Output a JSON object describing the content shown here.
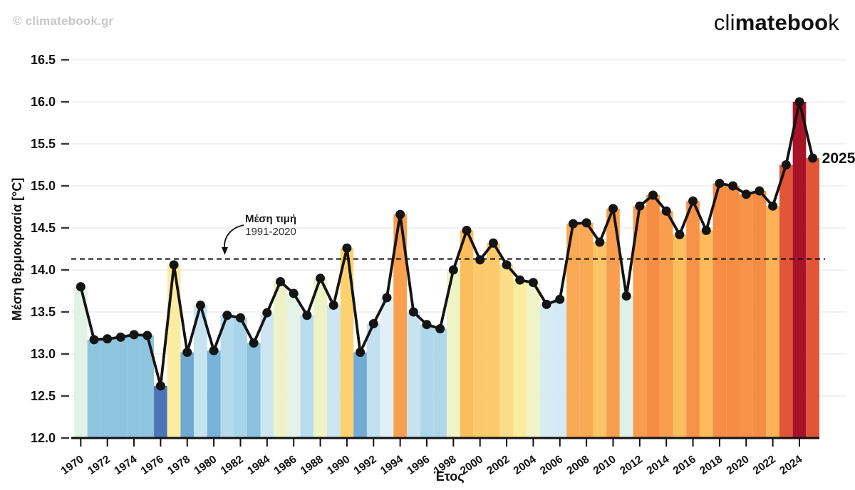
{
  "header": {
    "copyright": "© climatebook.gr",
    "logo": {
      "part1": "cli",
      "part2": "mateboo",
      "part3": "k"
    }
  },
  "chart_data": {
    "type": "bar+line",
    "xlabel": "Έτος",
    "ylabel": "Μέση θερμοκρασία [°C]",
    "ylim": [
      12.0,
      16.5
    ],
    "yticks": [
      12.0,
      12.5,
      13.0,
      13.5,
      14.0,
      14.5,
      15.0,
      15.5,
      16.0,
      16.5
    ],
    "xticks": [
      1970,
      1972,
      1974,
      1976,
      1978,
      1980,
      1982,
      1984,
      1986,
      1988,
      1990,
      1992,
      1994,
      1996,
      1998,
      2000,
      2002,
      2004,
      2006,
      2008,
      2010,
      2012,
      2014,
      2016,
      2018,
      2020,
      2022,
      2024
    ],
    "grid": true,
    "legend_position": "none",
    "baseline": {
      "value": 14.13,
      "label_line1": "Μέση τιμή",
      "label_line2": "1991-2020"
    },
    "end_label": "2025",
    "line_color": "#141414",
    "years": [
      1970,
      1971,
      1972,
      1973,
      1974,
      1975,
      1976,
      1977,
      1978,
      1979,
      1980,
      1981,
      1982,
      1983,
      1984,
      1985,
      1986,
      1987,
      1988,
      1989,
      1990,
      1991,
      1992,
      1993,
      1994,
      1995,
      1996,
      1997,
      1998,
      1999,
      2000,
      2001,
      2002,
      2003,
      2004,
      2005,
      2006,
      2007,
      2008,
      2009,
      2010,
      2011,
      2012,
      2013,
      2014,
      2015,
      2016,
      2017,
      2018,
      2019,
      2020,
      2021,
      2022,
      2023,
      2024,
      2025
    ],
    "values": [
      13.8,
      13.17,
      13.18,
      13.2,
      13.23,
      13.22,
      12.62,
      14.06,
      13.02,
      13.58,
      13.04,
      13.46,
      13.43,
      13.13,
      13.49,
      13.86,
      13.72,
      13.46,
      13.9,
      13.58,
      14.26,
      13.02,
      13.36,
      13.67,
      14.66,
      13.5,
      13.35,
      13.3,
      14.0,
      14.47,
      14.12,
      14.32,
      14.06,
      13.88,
      13.85,
      13.59,
      13.65,
      14.55,
      14.56,
      14.33,
      14.73,
      13.69,
      14.76,
      14.89,
      14.7,
      14.42,
      14.82,
      14.47,
      15.03,
      15.0,
      14.9,
      14.94,
      14.76,
      15.25,
      16.0,
      15.33
    ],
    "colors": [
      "#e3f2e6",
      "#8ec4de",
      "#8ec4de",
      "#8ec4de",
      "#8ec4de",
      "#8ec4de",
      "#4a76b7",
      "#fbeca0",
      "#6fa9d2",
      "#c6e3f1",
      "#79b1d7",
      "#b5daee",
      "#a8d4e9",
      "#8ac1dd",
      "#cde6f2",
      "#edf3c4",
      "#e4f2ea",
      "#b9dcee",
      "#edf3c4",
      "#cde6f3",
      "#fcd170",
      "#74abd4",
      "#c2e0ef",
      "#e0f0f5",
      "#f8a04d",
      "#c6e3f1",
      "#aed7ea",
      "#aed7ea",
      "#eff4c6",
      "#fcbd5e",
      "#fcca6a",
      "#fcca6a",
      "#fcdc86",
      "#fceca0",
      "#eef3c8",
      "#d7ebf2",
      "#d4eaf5",
      "#faaa55",
      "#faaa55",
      "#fcc467",
      "#f89e4e",
      "#e0f1ea",
      "#f89e4e",
      "#f68d45",
      "#f89e4e",
      "#fcbd5e",
      "#f79249",
      "#fcba5c",
      "#f68d45",
      "#f68d45",
      "#f79249",
      "#f68d45",
      "#fbb158",
      "#e25536",
      "#a81327",
      "#e25536"
    ]
  }
}
